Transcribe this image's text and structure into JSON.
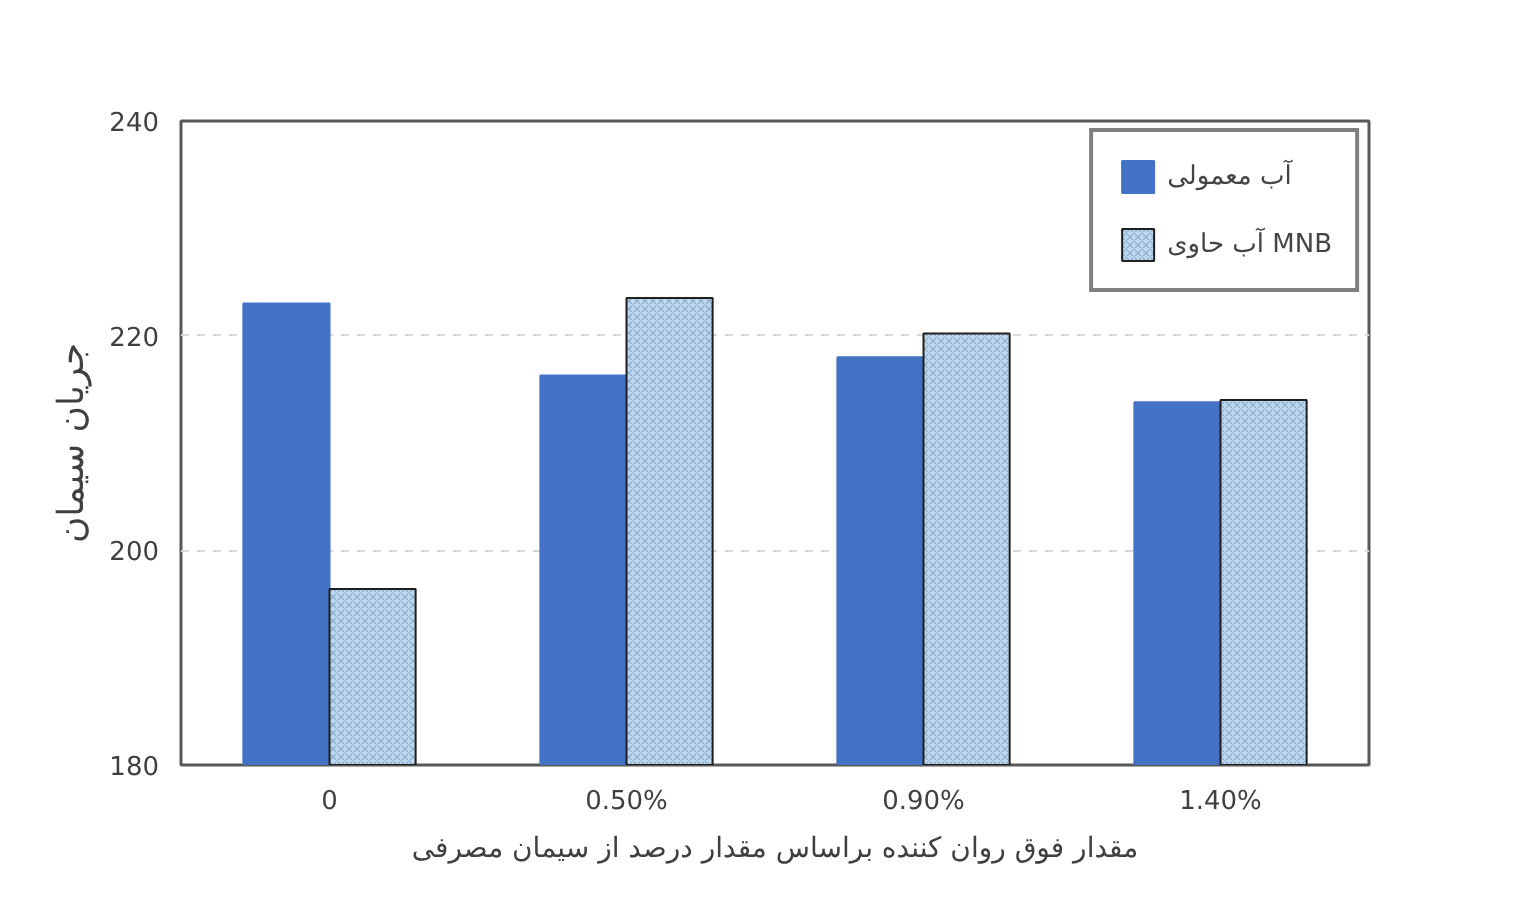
{
  "chart_data": {
    "type": "bar",
    "ylabel": "جریان سیمان",
    "xlabel": "مقدار فوق روان کننده براساس مقدار درصد از سیمان مصرفی",
    "categories": [
      "0",
      "0.50%",
      "0.90%",
      "1.40%"
    ],
    "series": [
      {
        "name": "آب معمولی",
        "color": "#4472c4",
        "values": [
          223,
          216.3,
          218,
          213.8
        ]
      },
      {
        "name": "آب حاوی MNB",
        "color": "#bdd7ee",
        "values": [
          196.4,
          223.5,
          220.2,
          214
        ]
      }
    ],
    "ylim": [
      180,
      240
    ],
    "yticks": [
      180,
      200,
      220,
      240
    ],
    "grid": "y",
    "legend": "top right"
  }
}
